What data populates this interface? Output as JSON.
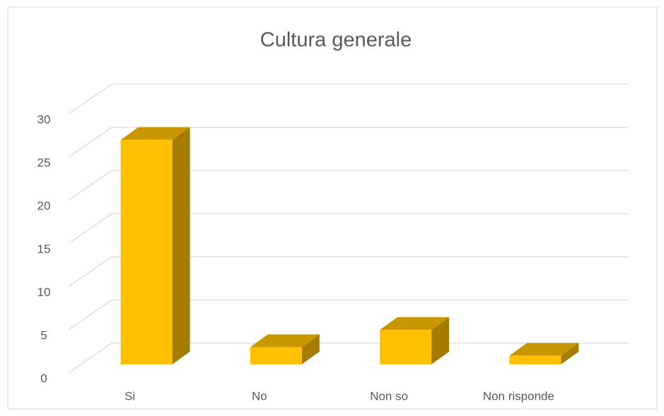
{
  "chart_data": {
    "type": "bar3d",
    "title": "Cultura generale",
    "categories": [
      "Si",
      "No",
      "Non so",
      "Non risponde"
    ],
    "values": [
      26,
      2,
      4,
      1
    ],
    "color": "#ffc000",
    "ylim": [
      0,
      30
    ],
    "yticks": [
      0,
      5,
      10,
      15,
      20,
      25,
      30
    ],
    "grid": true
  }
}
